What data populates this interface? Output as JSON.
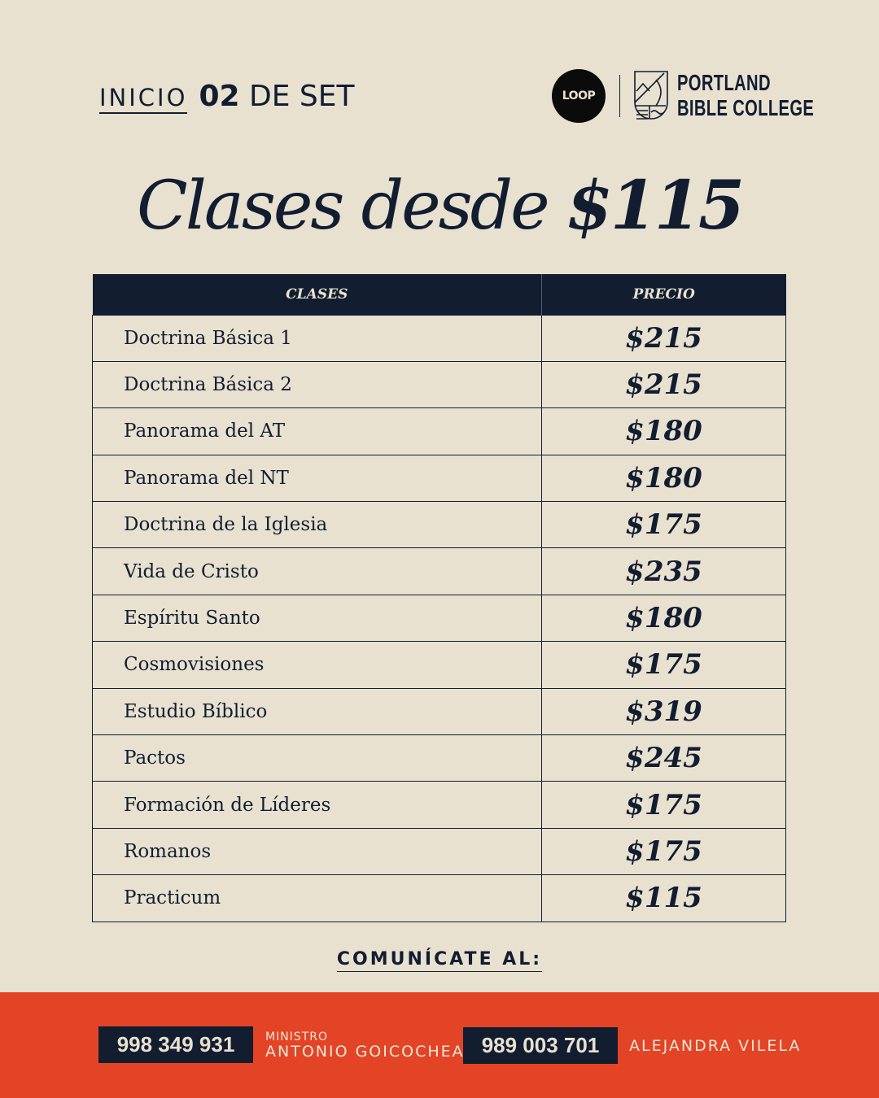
{
  "header": {
    "start_label": "INICIO",
    "date_number": "02",
    "date_rest": "DE SET",
    "loop_logo": "LOOP",
    "college_line1": "PORTLAND",
    "college_line2": "BIBLE COLLEGE"
  },
  "headline": {
    "prefix": "Clases desde",
    "price": "$115"
  },
  "table": {
    "headers": [
      "CLASES",
      "PRECIO"
    ],
    "rows": [
      {
        "name": "Doctrina Básica 1",
        "price": "$215"
      },
      {
        "name": "Doctrina Básica 2",
        "price": "$215"
      },
      {
        "name": "Panorama del AT",
        "price": "$180"
      },
      {
        "name": "Panorama del NT",
        "price": "$180"
      },
      {
        "name": "Doctrina de la Iglesia",
        "price": "$175"
      },
      {
        "name": "Vida de Cristo",
        "price": "$235"
      },
      {
        "name": "Espíritu Santo",
        "price": "$180"
      },
      {
        "name": "Cosmovisiones",
        "price": "$175"
      },
      {
        "name": "Estudio Bíblico",
        "price": "$319"
      },
      {
        "name": "Pactos",
        "price": "$245"
      },
      {
        "name": "Formación de Líderes",
        "price": "$175"
      },
      {
        "name": "Romanos",
        "price": "$175"
      },
      {
        "name": "Practicum",
        "price": "$115"
      }
    ]
  },
  "contact": {
    "label": "COMUNÍCATE AL:",
    "contacts": [
      {
        "phone": "998 349 931",
        "title": "MINISTRO",
        "name": "ANTONIO GOICOCHEA"
      },
      {
        "phone": "989 003 701",
        "name": "ALEJANDRA VILELA"
      }
    ]
  },
  "colors": {
    "background": "#e8e1d0",
    "navy": "#121d30",
    "accent": "#e44426"
  }
}
